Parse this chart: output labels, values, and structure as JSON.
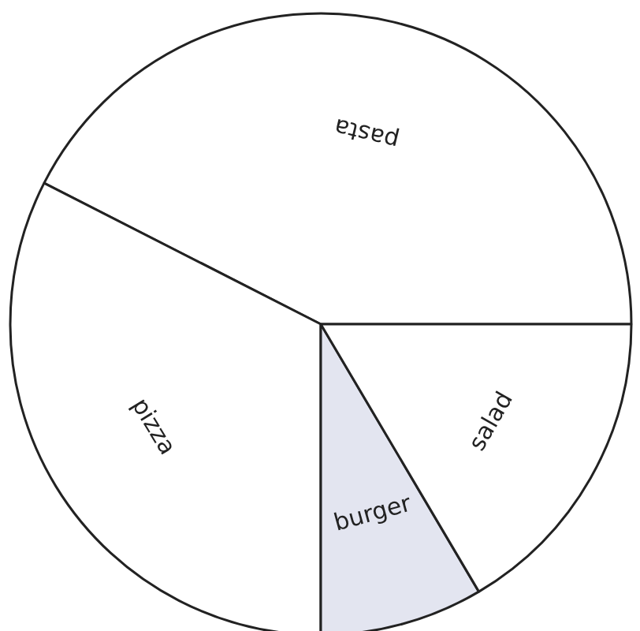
{
  "chart_data": {
    "type": "pie",
    "categories": [
      "pasta",
      "pizza",
      "burger",
      "salad"
    ],
    "values": [
      42.5,
      32.5,
      8.5,
      16.5
    ],
    "colors": [
      "#ffffff",
      "#ffffff",
      "#e3e5f0",
      "#ffffff"
    ]
  }
}
